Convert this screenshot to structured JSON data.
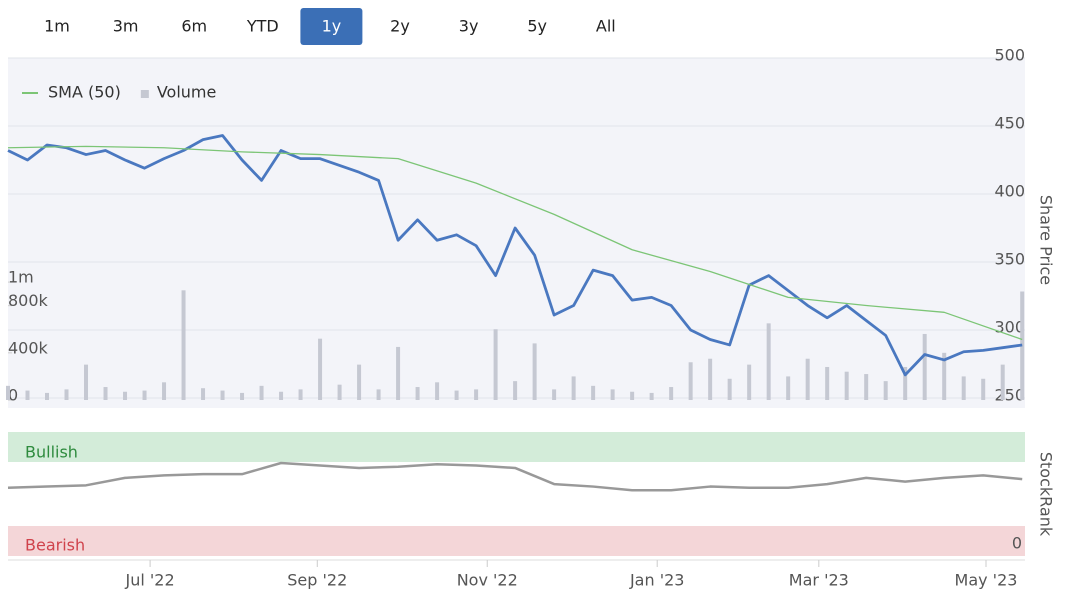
{
  "controls": {
    "range_buttons": [
      {
        "label": "1m"
      },
      {
        "label": "3m"
      },
      {
        "label": "6m"
      },
      {
        "label": "YTD"
      },
      {
        "label": "1y",
        "selected": true
      },
      {
        "label": "2y"
      },
      {
        "label": "3y"
      },
      {
        "label": "5y"
      },
      {
        "label": "All"
      }
    ]
  },
  "chart_data": [
    {
      "type": "line",
      "ylabel": "Share Price",
      "legend": "top-left",
      "grid": true,
      "xlim": [
        0,
        365
      ],
      "ylim": [
        250,
        500
      ],
      "yticks": [
        250,
        300,
        350,
        400,
        450,
        500
      ],
      "y2lim": [
        0,
        2900000
      ],
      "y2ticks": [
        0,
        {
          "value": 400000,
          "label": "400k"
        },
        {
          "value": 800000,
          "label": "800k"
        },
        {
          "value": 1000000,
          "label": "1m"
        }
      ],
      "series": [
        {
          "color": "#4a78c0",
          "x": [
            0,
            7,
            14,
            21,
            28,
            35,
            42,
            49,
            56,
            63,
            70,
            77,
            84,
            91,
            98,
            105,
            112,
            119,
            126,
            133,
            140,
            147,
            154,
            161,
            168,
            175,
            182,
            189,
            196,
            203,
            210,
            217,
            224,
            231,
            238,
            245,
            252,
            259,
            266,
            273,
            280,
            287,
            294,
            301,
            308,
            315,
            322,
            329,
            336,
            343,
            350,
            357,
            364
          ],
          "values": [
            432,
            425,
            436,
            434,
            429,
            432,
            425,
            419,
            426,
            432,
            440,
            443,
            425,
            410,
            432,
            426,
            426,
            421,
            416,
            410,
            366,
            381,
            366,
            370,
            362,
            340,
            375,
            355,
            311,
            318,
            344,
            340,
            322,
            324,
            318,
            300,
            293,
            289,
            333,
            340,
            329,
            318,
            309,
            318,
            307,
            296,
            267,
            282,
            278,
            284,
            285,
            287,
            289
          ]
        },
        {
          "name": "SMA (50)",
          "color": "#7cc576",
          "x": [
            0,
            28,
            56,
            84,
            112,
            140,
            168,
            196,
            224,
            252,
            280,
            308,
            336,
            364
          ],
          "values": [
            434,
            435,
            434,
            431,
            429,
            426,
            408,
            385,
            359,
            343,
            324,
            318,
            313,
            293
          ]
        },
        {
          "name": "Volume",
          "type": "bar",
          "axis": "y2",
          "color": "#c5c8d2",
          "x": [
            0,
            7,
            14,
            21,
            28,
            35,
            42,
            49,
            56,
            63,
            70,
            77,
            84,
            91,
            98,
            105,
            112,
            119,
            126,
            133,
            140,
            147,
            154,
            161,
            168,
            175,
            182,
            189,
            196,
            203,
            210,
            217,
            224,
            231,
            238,
            245,
            252,
            259,
            266,
            273,
            280,
            287,
            294,
            301,
            308,
            315,
            322,
            329,
            336,
            343,
            350,
            357,
            364
          ],
          "values": [
            120000,
            80000,
            60000,
            90000,
            300000,
            110000,
            70000,
            80000,
            150000,
            930000,
            100000,
            80000,
            60000,
            120000,
            70000,
            90000,
            520000,
            130000,
            300000,
            90000,
            450000,
            110000,
            150000,
            80000,
            90000,
            600000,
            160000,
            480000,
            90000,
            200000,
            120000,
            90000,
            70000,
            60000,
            110000,
            320000,
            350000,
            180000,
            300000,
            650000,
            200000,
            350000,
            280000,
            240000,
            220000,
            160000,
            280000,
            560000,
            400000,
            200000,
            180000,
            300000,
            920000
          ]
        }
      ]
    },
    {
      "type": "line",
      "ylabel": "StockRank",
      "bullish_label": "Bullish",
      "bearish_label": "Bearish",
      "xlim": [
        0,
        365
      ],
      "xticks": [
        {
          "value": 51,
          "label": "Jul '22"
        },
        {
          "value": 111,
          "label": "Sep '22"
        },
        {
          "value": 172,
          "label": "Nov '22"
        },
        {
          "value": 233,
          "label": "Jan '23"
        },
        {
          "value": 291,
          "label": "Mar '23"
        },
        {
          "value": 351,
          "label": "May '23"
        }
      ],
      "ylim": [
        0,
        100
      ],
      "yticks": [
        0
      ],
      "series": [
        {
          "color": "#999999",
          "x": [
            0,
            14,
            28,
            42,
            56,
            70,
            84,
            98,
            112,
            126,
            140,
            154,
            168,
            182,
            196,
            210,
            224,
            238,
            252,
            266,
            280,
            294,
            308,
            322,
            336,
            350,
            364
          ],
          "values": [
            55,
            56,
            57,
            63,
            65,
            66,
            66,
            75,
            73,
            71,
            72,
            74,
            73,
            71,
            58,
            56,
            53,
            53,
            56,
            55,
            55,
            58,
            63,
            60,
            63,
            65,
            62
          ]
        }
      ]
    }
  ]
}
